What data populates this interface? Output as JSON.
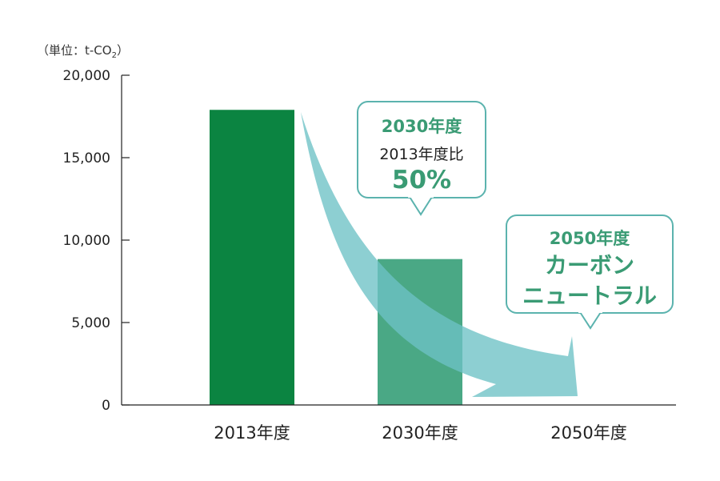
{
  "chart_data": {
    "type": "bar",
    "categories": [
      "2013年度",
      "2030年度",
      "2050年度"
    ],
    "values": [
      17900,
      8850,
      0
    ],
    "ylim": [
      0,
      20000
    ],
    "yticks": [
      "0",
      "5,000",
      "10,000",
      "15,000",
      "20,000"
    ],
    "ytick_values": [
      0,
      5000,
      10000,
      15000,
      20000
    ],
    "unit_label": "（単位：t-CO",
    "unit_sub": "2",
    "unit_close": "）",
    "colors": [
      "#0b8441",
      "#4aa885",
      "#6dc1c5"
    ]
  },
  "callouts": {
    "c2030": {
      "title": "2030年度",
      "line": "2013年度比",
      "value": "50%"
    },
    "c2050": {
      "title": "2050年度",
      "line1": "カーボン",
      "line2": "ニュートラル"
    }
  }
}
